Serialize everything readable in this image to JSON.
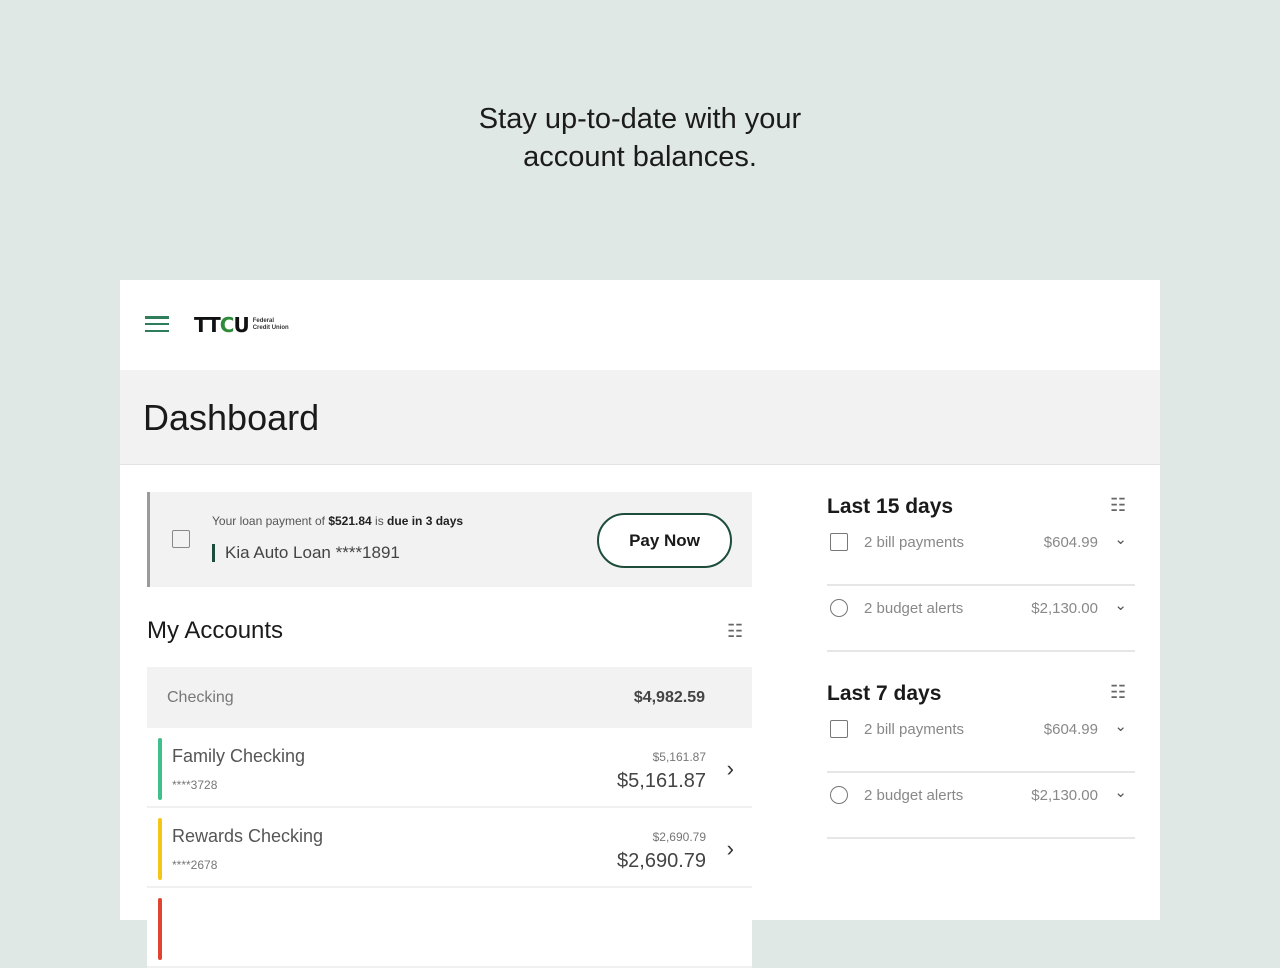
{
  "headline": [
    "Stay up-to-date with your",
    "account balances."
  ],
  "header": {
    "logo_text": "TTCU",
    "logo_sub": [
      "Federal",
      "Credit Union"
    ]
  },
  "dashboard": {
    "title": "Dashboard"
  },
  "notice": {
    "prefix": "Your loan payment of ",
    "amount": "$521.84",
    "mid": " is ",
    "due": "due in 3 days",
    "account": "Kia Auto Loan ****1891",
    "button": "Pay Now"
  },
  "accounts": {
    "title": "My Accounts",
    "group": {
      "name": "Checking",
      "total": "$4,982.59"
    },
    "rows": [
      {
        "name": "Family Checking",
        "number": "****3728",
        "available": "$5,161.87",
        "balance": "$5,161.87",
        "color": "#3fbf8c"
      },
      {
        "name": "Rewards Checking",
        "number": "****2678",
        "available": "$2,690.79",
        "balance": "$2,690.79",
        "color": "#f5c518"
      }
    ],
    "third_row_color": "#e0442f"
  },
  "summary": [
    {
      "title": "Last 15 days",
      "items": [
        {
          "label": "2 bill payments",
          "amount": "$604.99",
          "icon": "bill-icon"
        },
        {
          "label": "2 budget alerts",
          "amount": "$2,130.00",
          "icon": "budget-icon"
        }
      ]
    },
    {
      "title": "Last 7 days",
      "items": [
        {
          "label": "2 bill payments",
          "amount": "$604.99",
          "icon": "bill-icon"
        },
        {
          "label": "2 budget alerts",
          "amount": "$2,130.00",
          "icon": "budget-icon"
        }
      ]
    }
  ]
}
